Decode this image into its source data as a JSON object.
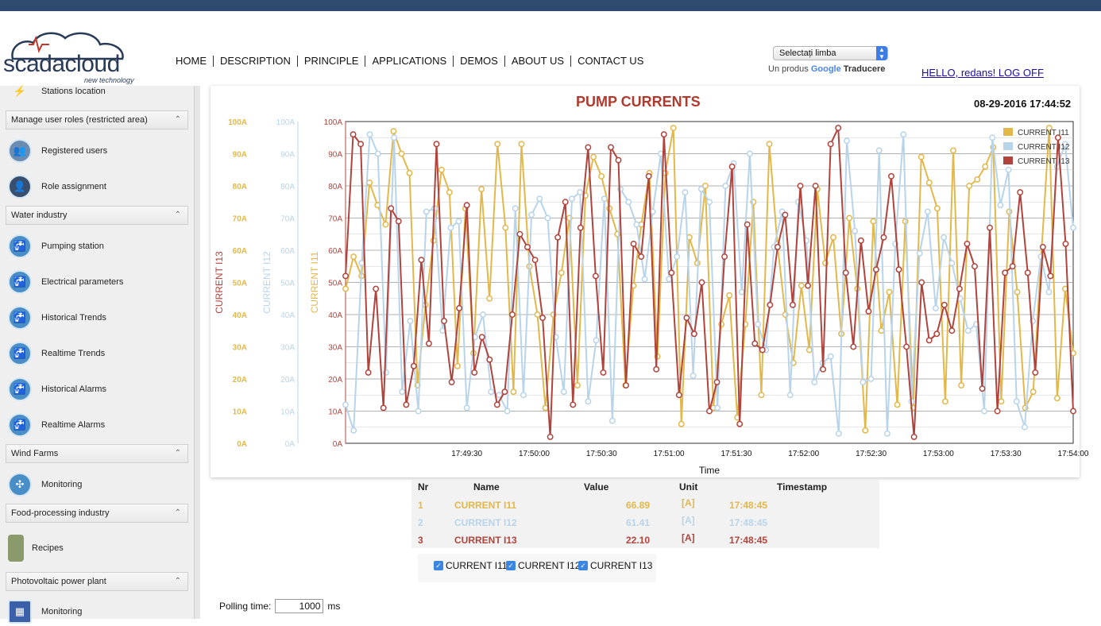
{
  "header": {
    "logo_text": "scadacloud",
    "logo_sub": "new technology",
    "nav": [
      "HOME",
      "DESCRIPTION",
      "PRINCIPLE",
      "APPLICATIONS",
      "DEMOS",
      "ABOUT US",
      "CONTACT US"
    ],
    "language_select": "Selectați limba",
    "powered_prefix": "Un produs",
    "powered_google": "Google",
    "powered_suffix": "Traducere",
    "greeting": "HELLO, redans! LOG OFF"
  },
  "sidebar": {
    "stations_location": "Stations location",
    "section_roles": "Manage user roles (restricted area)",
    "registered_users": "Registered users",
    "role_assignment": "Role assignment",
    "section_water": "Water industry",
    "water_items": [
      "Pumping station",
      "Electrical parameters",
      "Historical Trends",
      "Realtime Trends",
      "Historical Alarms",
      "Realtime Alarms"
    ],
    "section_wind": "Wind Farms",
    "wind_monitoring": "Monitoring",
    "section_food": "Food-processing industry",
    "recipes": "Recipes",
    "section_pv": "Photovoltaic power plant",
    "pv_monitoring": "Monitoring"
  },
  "chart_data": {
    "type": "line",
    "title": "PUMP CURRENTS",
    "timestamp": "08-29-2016 17:44:52",
    "xlabel": "Time",
    "x_ticks": [
      "17:49:30",
      "17:50:00",
      "17:50:30",
      "17:51:00",
      "17:51:30",
      "17:52:00",
      "17:52:30",
      "17:53:00",
      "17:53:30",
      "17:54:00"
    ],
    "y_ticks": [
      "0A",
      "10A",
      "20A",
      "30A",
      "40A",
      "50A",
      "60A",
      "70A",
      "80A",
      "90A",
      "100A"
    ],
    "ylim": [
      0,
      100
    ],
    "x_range_seconds": [
      0,
      300
    ],
    "grid": true,
    "legend_position": "top-right",
    "series": [
      {
        "name": "CURRENT I11",
        "axis_label": "CURRENT I11",
        "color": "#e2b84b",
        "values": [
          48,
          58,
          52,
          81,
          74,
          68,
          97,
          90,
          84,
          18,
          43,
          63,
          85,
          78,
          24,
          73,
          28,
          79,
          45,
          93,
          67,
          16,
          93,
          55,
          40,
          11,
          40,
          53,
          70,
          18,
          77,
          89,
          83,
          73,
          65,
          18,
          49,
          68,
          84,
          27,
          84,
          98,
          6,
          64,
          56,
          80,
          11,
          37,
          46,
          8,
          37,
          75,
          15,
          93,
          62,
          40,
          25,
          49,
          29,
          79,
          56,
          64,
          34,
          70,
          48,
          4,
          69,
          35,
          47,
          12,
          69,
          11,
          89,
          81,
          73,
          13,
          91,
          18,
          80,
          82,
          86,
          92,
          13,
          72,
          47,
          11,
          16,
          58,
          98,
          14,
          48,
          28
        ]
      },
      {
        "name": "CURRENT I12",
        "axis_label": "CURRENT I12",
        "color": "#b8d4ea",
        "values": [
          12,
          4,
          56,
          96,
          90,
          22,
          95,
          16,
          38,
          10,
          72,
          73,
          35,
          67,
          69,
          11,
          33,
          40,
          16,
          15,
          10,
          73,
          15,
          71,
          76,
          70,
          33,
          16,
          76,
          78,
          13,
          32,
          76,
          7,
          79,
          75,
          68,
          51,
          72,
          90,
          51,
          58,
          78,
          21,
          79,
          75,
          11,
          80,
          87,
          47,
          90,
          37,
          29,
          61,
          72,
          15,
          75,
          63,
          19,
          25,
          27,
          3,
          94,
          66,
          19,
          20,
          91,
          3,
          62,
          96,
          13,
          59,
          72,
          42,
          64,
          56,
          45,
          35,
          37,
          10,
          95,
          74,
          85,
          13,
          5,
          38,
          58,
          47,
          86,
          93,
          67
        ]
      },
      {
        "name": "CURRENT I13",
        "axis_label": "CURRENT I13",
        "color": "#b0443c",
        "values": [
          52,
          96,
          93,
          22,
          48,
          11,
          73,
          69,
          12,
          24,
          57,
          31,
          93,
          38,
          19,
          42,
          74,
          22,
          33,
          26,
          12,
          16,
          40,
          65,
          61,
          57,
          39,
          2,
          64,
          75,
          12,
          67,
          92,
          52,
          22,
          92,
          88,
          18,
          62,
          58,
          83,
          23,
          96,
          53,
          15,
          39,
          34,
          50,
          10,
          19,
          58,
          86,
          6,
          68,
          31,
          29,
          43,
          61,
          71,
          43,
          80,
          49,
          80,
          23,
          93,
          98,
          53,
          30,
          63,
          41,
          54,
          64,
          83,
          54,
          30,
          2,
          50,
          32,
          34,
          43,
          35,
          48,
          62,
          55,
          17,
          67,
          10,
          53,
          55,
          78,
          53,
          22,
          61,
          52,
          95,
          62,
          10
        ]
      }
    ]
  },
  "table": {
    "headers": [
      "Nr",
      "Name",
      "Value",
      "Unit",
      "Timestamp"
    ],
    "rows": [
      {
        "nr": "1",
        "name": "CURRENT I11",
        "value": "66.89",
        "unit": "[A]",
        "ts": "17:48:45",
        "color": "#e2b84b"
      },
      {
        "nr": "2",
        "name": "CURRENT I12",
        "value": "61.41",
        "unit": "[A]",
        "ts": "17:48:45",
        "color": "#b8d4ea"
      },
      {
        "nr": "3",
        "name": "CURRENT I13",
        "value": "22.10",
        "unit": "[A]",
        "ts": "17:48:45",
        "color": "#b0443c"
      }
    ]
  },
  "checkboxes": [
    "CURRENT I11",
    "CURRENT I12",
    "CURRENT I13"
  ],
  "polling": {
    "label": "Polling time:",
    "value": "1000",
    "unit": "ms"
  }
}
